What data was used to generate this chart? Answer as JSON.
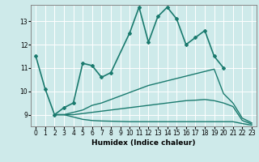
{
  "xlabel": "Humidex (Indice chaleur)",
  "bg_color": "#ceeaea",
  "line_color": "#1a7a6e",
  "grid_color": "#ffffff",
  "x_ticks": [
    0,
    1,
    2,
    3,
    4,
    5,
    6,
    7,
    8,
    9,
    10,
    11,
    12,
    13,
    14,
    15,
    16,
    17,
    18,
    19,
    20,
    21,
    22,
    23
  ],
  "y_ticks": [
    9,
    10,
    11,
    12,
    13
  ],
  "ylim": [
    8.5,
    13.7
  ],
  "xlim": [
    -0.5,
    23.5
  ],
  "series": [
    {
      "x": [
        0,
        1,
        2,
        3,
        4,
        5,
        6,
        7,
        8,
        10,
        11,
        12,
        13,
        14,
        15,
        16,
        17,
        18,
        19,
        20
      ],
      "y": [
        11.5,
        10.1,
        9.0,
        9.3,
        9.5,
        11.2,
        11.1,
        10.6,
        10.8,
        12.5,
        13.6,
        12.1,
        13.2,
        13.6,
        13.1,
        12.0,
        12.3,
        12.6,
        11.5,
        11.0
      ],
      "marker": true,
      "linewidth": 1.2
    },
    {
      "x": [
        2,
        3,
        4,
        5,
        6,
        7,
        8,
        9,
        10,
        11,
        12,
        13,
        14,
        15,
        16,
        17,
        18,
        19,
        20,
        21,
        22,
        23
      ],
      "y": [
        9.0,
        9.0,
        9.1,
        9.2,
        9.4,
        9.5,
        9.65,
        9.8,
        9.95,
        10.1,
        10.25,
        10.35,
        10.45,
        10.55,
        10.65,
        10.75,
        10.85,
        10.95,
        9.9,
        9.5,
        8.85,
        8.65
      ],
      "marker": false,
      "linewidth": 1.0
    },
    {
      "x": [
        2,
        3,
        4,
        5,
        6,
        7,
        8,
        9,
        10,
        11,
        12,
        13,
        14,
        15,
        16,
        17,
        18,
        19,
        20,
        21,
        22,
        23
      ],
      "y": [
        9.0,
        9.0,
        9.0,
        9.05,
        9.1,
        9.15,
        9.2,
        9.25,
        9.3,
        9.35,
        9.4,
        9.45,
        9.5,
        9.55,
        9.6,
        9.62,
        9.65,
        9.6,
        9.5,
        9.35,
        8.75,
        8.6
      ],
      "marker": false,
      "linewidth": 1.0
    },
    {
      "x": [
        2,
        3,
        4,
        5,
        6,
        7,
        8,
        9,
        10,
        11,
        12,
        13,
        14,
        15,
        16,
        17,
        18,
        19,
        20,
        21,
        22,
        23
      ],
      "y": [
        9.0,
        9.0,
        8.9,
        8.8,
        8.75,
        8.73,
        8.72,
        8.71,
        8.7,
        8.7,
        8.7,
        8.7,
        8.7,
        8.7,
        8.7,
        8.7,
        8.7,
        8.7,
        8.7,
        8.7,
        8.62,
        8.55
      ],
      "marker": false,
      "linewidth": 1.0
    }
  ]
}
